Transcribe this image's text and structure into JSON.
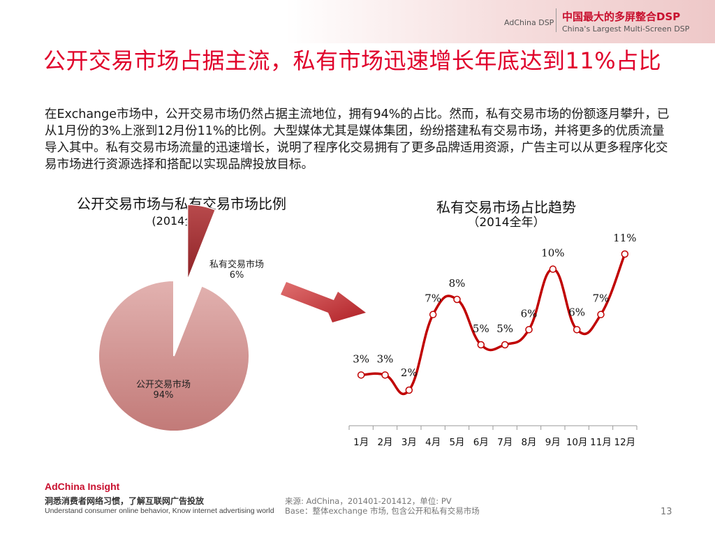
{
  "header": {
    "brand_small": "AdChina DSP",
    "brand_cn": "中国最大的多屏整合DSP",
    "brand_en": "China's Largest Multi-Screen DSP"
  },
  "title": "公开交易市场占据主流，私有市场迅速增长年底达到11%占比",
  "body_text": "在Exchange市场中，公开交易市场仍然占据主流地位，拥有94%的占比。然而，私有交易市场的份额逐月攀升，已从1月份的3%上涨到12月份11%的比例。大型媒体尤其是媒体集团，纷纷搭建私有交易市场，并将更多的优质流量导入其中。私有交易市场流量的迅速增长，说明了程序化交易拥有了更多品牌适用资源，广告主可以从更多程序化交易市场进行资源选择和搭配以实现品牌投放目标。",
  "pie": {
    "title": "公开交易市场与私有交易市场比例",
    "subtitle": "(2014全年)"
  },
  "line": {
    "title": "私有交易市场占比趋势",
    "subtitle": "（2014全年）"
  },
  "chart_data": [
    {
      "type": "pie",
      "categories": [
        "公开交易市场",
        "私有交易市场"
      ],
      "values": [
        94,
        6
      ],
      "value_labels": [
        "94%",
        "6%"
      ],
      "colors": [
        "#d29a98",
        "#a83034"
      ]
    },
    {
      "type": "line",
      "categories": [
        "1月",
        "2月",
        "3月",
        "4月",
        "5月",
        "6月",
        "7月",
        "8月",
        "9月",
        "10月",
        "11月",
        "12月"
      ],
      "values": [
        3,
        3,
        2,
        7,
        8,
        5,
        5,
        6,
        10,
        6,
        7,
        11
      ],
      "value_labels": [
        "3%",
        "3%",
        "2%",
        "7%",
        "8%",
        "5%",
        "5%",
        "6%",
        "10%",
        "6%",
        "7%",
        "11%"
      ],
      "color": "#c00000",
      "smooth": true
    }
  ],
  "footer": {
    "brand": "AdChina Insight",
    "tagline_cn": "洞悉消费者网络习惯，了解互联网广告投放",
    "tagline_en": "Understand consumer online behavior, Know internet advertising world",
    "source_line1": "来源: AdChina，201401-201412，单位: PV",
    "source_line2": "Base：整体exchange 市场, 包含公开和私有交易市场",
    "page_number": "13"
  }
}
